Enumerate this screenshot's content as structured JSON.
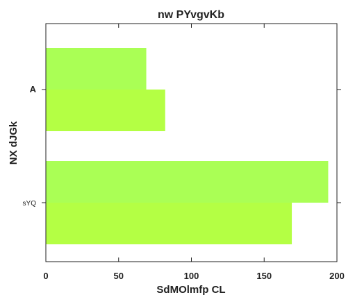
{
  "chart_data": {
    "type": "bar",
    "orientation": "horizontal",
    "title": "nw PYvgvKb",
    "xlabel": "SdMOlmfp  CL",
    "ylabel": "NX dJGk",
    "categories": [
      "A",
      "sYQ"
    ],
    "series": [
      {
        "values": [
          69,
          194
        ],
        "color": "#aaff55"
      },
      {
        "values": [
          82,
          169
        ],
        "color": "#b4ff44"
      }
    ],
    "xlim": [
      0,
      200
    ],
    "xticks": [
      0,
      50,
      100,
      150,
      200
    ],
    "grid": false
  }
}
